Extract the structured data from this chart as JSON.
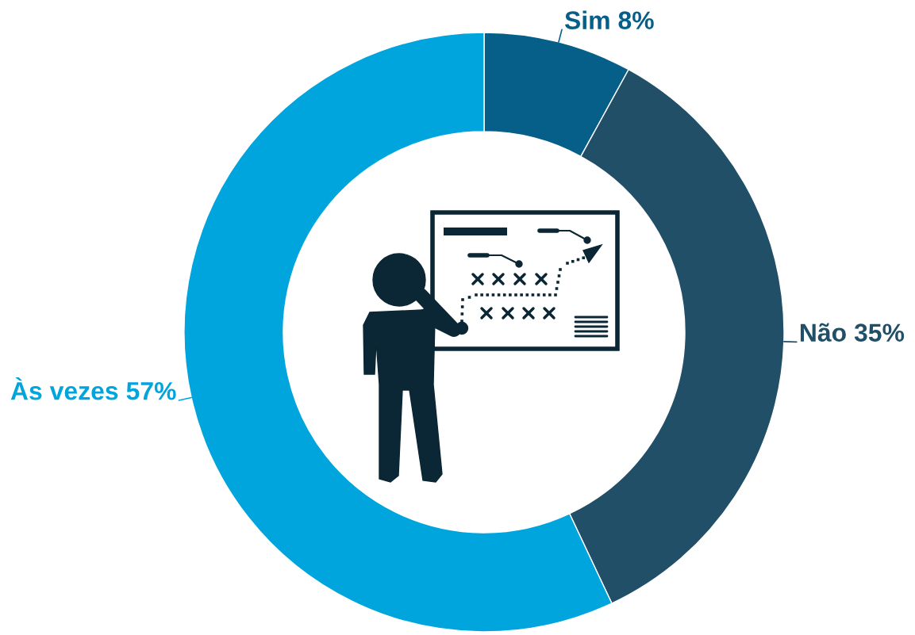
{
  "chart_data": {
    "type": "donut",
    "categories": [
      "Sim",
      "Não",
      "Às vezes"
    ],
    "values": [
      8,
      35,
      57
    ],
    "colors": [
      "#065f89",
      "#214f67",
      "#00a5de"
    ],
    "value_labels": [
      "8%",
      "35%",
      "57%"
    ]
  }
}
